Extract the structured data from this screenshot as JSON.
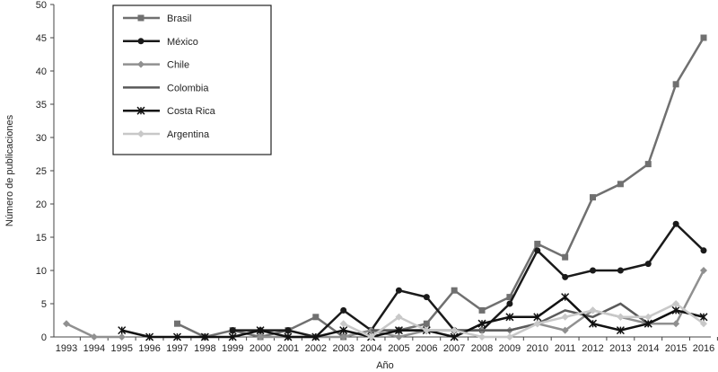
{
  "chart_data": {
    "type": "line",
    "xlabel": "Año",
    "ylabel": "Número de publicaciones",
    "ylim": [
      0,
      50
    ],
    "yticks": [
      0,
      5,
      10,
      15,
      20,
      25,
      30,
      35,
      40,
      45,
      50
    ],
    "x": [
      1993,
      1994,
      1995,
      1996,
      1997,
      1998,
      1999,
      2000,
      2001,
      2002,
      2003,
      2004,
      2005,
      2006,
      2007,
      2008,
      2009,
      2010,
      2011,
      2012,
      2013,
      2014,
      2015,
      2016
    ],
    "legend_position": "top-left",
    "grid": false,
    "series": [
      {
        "name": "Brasil",
        "color": "#707070",
        "marker": "square",
        "values": [
          null,
          null,
          null,
          null,
          2,
          0,
          1,
          0,
          1,
          3,
          0,
          1,
          1,
          2,
          7,
          4,
          6,
          14,
          12,
          21,
          23,
          26,
          38,
          45
        ]
      },
      {
        "name": "México",
        "color": "#1a1a1a",
        "marker": "circle",
        "values": [
          null,
          null,
          null,
          null,
          null,
          null,
          1,
          1,
          1,
          0,
          4,
          1,
          7,
          6,
          1,
          1,
          5,
          13,
          9,
          10,
          10,
          11,
          17,
          13
        ]
      },
      {
        "name": "Chile",
        "color": "#909090",
        "marker": "diamond",
        "values": [
          2,
          0,
          0,
          null,
          null,
          null,
          null,
          0,
          0,
          0,
          0,
          1,
          0,
          1,
          1,
          1,
          1,
          2,
          1,
          4,
          3,
          2,
          2,
          10
        ]
      },
      {
        "name": "Colombia",
        "color": "#5a5a5a",
        "marker": "none",
        "values": [
          null,
          null,
          null,
          null,
          null,
          null,
          null,
          null,
          null,
          null,
          null,
          1,
          1,
          1,
          1,
          1,
          1,
          2,
          4,
          3,
          5,
          2,
          4,
          3
        ]
      },
      {
        "name": "Costa Rica",
        "color": "#111111",
        "marker": "star",
        "values": [
          null,
          null,
          1,
          0,
          0,
          0,
          0,
          1,
          0,
          0,
          1,
          0,
          1,
          1,
          0,
          2,
          3,
          3,
          6,
          2,
          1,
          2,
          4,
          3
        ]
      },
      {
        "name": "Argentina",
        "color": "#c8c8c8",
        "marker": "diamond",
        "values": [
          null,
          null,
          null,
          null,
          null,
          null,
          null,
          null,
          null,
          null,
          2,
          0,
          3,
          1,
          1,
          0,
          0,
          2,
          3,
          4,
          3,
          3,
          5,
          2
        ]
      }
    ]
  }
}
